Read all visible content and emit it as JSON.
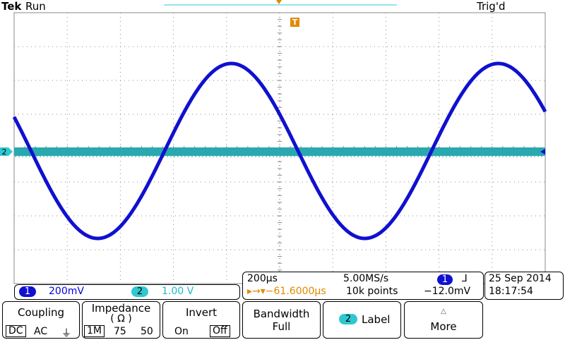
{
  "status": {
    "brand": "Tek",
    "mode": "Run",
    "trigger_state": "Trig'd"
  },
  "markers": {
    "ch2": "2",
    "trigger": "T"
  },
  "channels": {
    "ch1": {
      "badge": "1",
      "scale": "200mV",
      "color": "#1010d0"
    },
    "ch2": {
      "badge": "2",
      "scale": "1.00 V",
      "color": "#2ec8d0"
    }
  },
  "timebase": {
    "scale": "200µs",
    "sample_rate": "5.00MS/s",
    "trigger_position": "▸→▾−61.6000µs",
    "record_length": "10k points",
    "trigger_channel": "1",
    "trigger_slope": "⅃",
    "trigger_level": "−12.0mV"
  },
  "datetime": {
    "date": "25 Sep  2014",
    "time": "18:17:54"
  },
  "menu": {
    "coupling": {
      "title": "Coupling",
      "options": [
        "DC",
        "AC",
        "⏚"
      ]
    },
    "impedance": {
      "title": "Impedance",
      "unit": "( Ω )",
      "options": [
        "1M",
        "75",
        "50"
      ]
    },
    "invert": {
      "title": "Invert",
      "options": [
        "On",
        "Off"
      ]
    },
    "bandwidth": {
      "title": "Bandwidth",
      "value": "Full"
    },
    "label": {
      "badge": "2",
      "title": "Label"
    },
    "more": {
      "title": "More"
    }
  }
}
